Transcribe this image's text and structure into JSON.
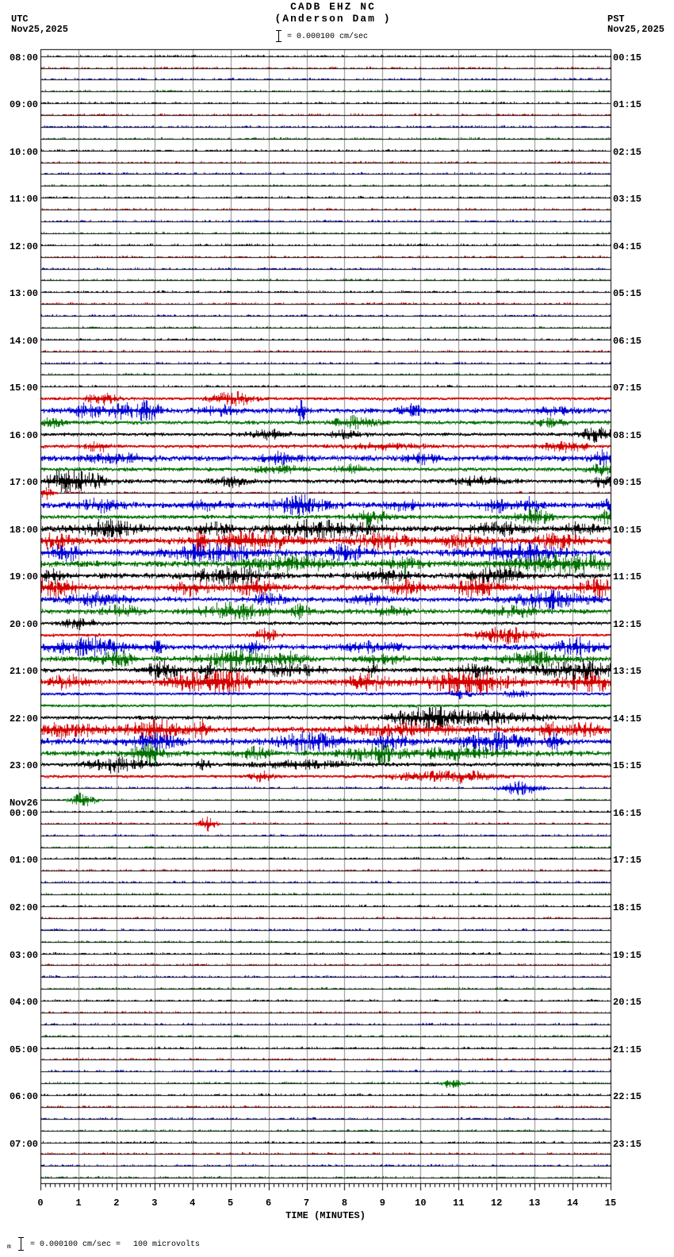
{
  "header": {
    "tz_left": "UTC",
    "date_left": "Nov25,2025",
    "tz_right": "PST",
    "date_right": "Nov25,2025",
    "station": "CADB EHZ NC",
    "location": "(Anderson Dam )",
    "scale_value": "= 0.000100 cm/sec"
  },
  "footer": {
    "axis_label": "TIME (MINUTES)",
    "note_prefix": "m",
    "note_scale": "= 0.000100 cm/sec =",
    "note_value": "100 microvolts",
    "tick_labels": [
      "0",
      "1",
      "2",
      "3",
      "4",
      "5",
      "6",
      "7",
      "8",
      "9",
      "10",
      "11",
      "12",
      "13",
      "14",
      "15"
    ]
  },
  "chart_data": {
    "type": "line",
    "subtype": "helicorder-seismogram",
    "xlabel": "TIME (MINUTES)",
    "x_range_minutes": [
      0,
      15
    ],
    "minutes_per_row": 15,
    "rows_total": 96,
    "grid": true,
    "colors": {
      "trace_cycle": [
        "#000000",
        "#d40000",
        "#0000d4",
        "#007000"
      ],
      "grid": "#8a8a8a",
      "baseline": "#000000",
      "background": "#ffffff"
    },
    "date_break": {
      "row": 64,
      "label": "Nov26"
    },
    "rows": [
      {
        "u": "08:00",
        "p": "00:15",
        "a": 0.55
      },
      {
        "a": 0.7
      },
      {
        "a": 0.8
      },
      {
        "a": 0.7
      },
      {
        "u": "09:00",
        "p": "01:15",
        "a": 0.55
      },
      {
        "a": 0.7
      },
      {
        "a": 0.8
      },
      {
        "a": 0.7
      },
      {
        "u": "10:00",
        "p": "02:15",
        "a": 0.55
      },
      {
        "a": 0.7
      },
      {
        "a": 0.8
      },
      {
        "a": 0.7
      },
      {
        "u": "11:00",
        "p": "03:15",
        "a": 0.55
      },
      {
        "a": 0.7
      },
      {
        "a": 0.85
      },
      {
        "a": 0.75
      },
      {
        "u": "12:00",
        "p": "04:15",
        "a": 0.55
      },
      {
        "a": 0.7
      },
      {
        "a": 0.8
      },
      {
        "a": 0.7
      },
      {
        "u": "13:00",
        "p": "05:15",
        "a": 0.55
      },
      {
        "a": 0.7
      },
      {
        "a": 0.8
      },
      {
        "a": 0.7
      },
      {
        "u": "14:00",
        "p": "06:15",
        "a": 0.6
      },
      {
        "a": 0.7
      },
      {
        "a": 0.8
      },
      {
        "a": 0.75
      },
      {
        "u": "15:00",
        "p": "07:15",
        "a": 0.8
      },
      {
        "a": 0.9,
        "b": [
          [
            1.6,
            4,
            0.3
          ],
          [
            5.0,
            5,
            0.4
          ]
        ]
      },
      {
        "a": 1.7,
        "b": [
          [
            1.2,
            5,
            0.25
          ],
          [
            2.2,
            6,
            0.3
          ],
          [
            2.8,
            7,
            0.2
          ],
          [
            4.7,
            3,
            0.3
          ],
          [
            6.8,
            7,
            0.12
          ],
          [
            9.7,
            4,
            0.2
          ],
          [
            13.5,
            3,
            0.3
          ]
        ]
      },
      {
        "a": 1.2,
        "b": [
          [
            0.3,
            3,
            0.2
          ],
          [
            8.2,
            4,
            0.4
          ],
          [
            13.4,
            3,
            0.3
          ]
        ]
      },
      {
        "u": "16:00",
        "p": "08:15",
        "a": 1.0,
        "b": [
          [
            6,
            3,
            0.4
          ],
          [
            8,
            3,
            0.3
          ],
          [
            14.6,
            5,
            0.3
          ]
        ]
      },
      {
        "a": 1.0,
        "b": [
          [
            1.5,
            4,
            0.2
          ],
          [
            9,
            2,
            0.8
          ],
          [
            13.8,
            4,
            0.4
          ]
        ]
      },
      {
        "a": 1.8,
        "b": [
          [
            2,
            3,
            0.5
          ],
          [
            6.3,
            4,
            0.3
          ],
          [
            10,
            3,
            0.3
          ],
          [
            14.8,
            5,
            0.2
          ]
        ]
      },
      {
        "a": 1.2,
        "b": [
          [
            6.2,
            3,
            0.4
          ],
          [
            8.2,
            3,
            0.3
          ],
          [
            14.7,
            4,
            0.2
          ]
        ]
      },
      {
        "u": "17:00",
        "p": "09:15",
        "a": 1.4,
        "b": [
          [
            0.55,
            9,
            0.35
          ],
          [
            1.3,
            5,
            0.3
          ],
          [
            5,
            3,
            0.3
          ],
          [
            11.5,
            3,
            0.4
          ],
          [
            14.8,
            4,
            0.2
          ]
        ]
      },
      {
        "a": 0.8,
        "b": [
          [
            0.15,
            5,
            0.1
          ]
        ]
      },
      {
        "a": 2.0,
        "b": [
          [
            1.5,
            4,
            0.4
          ],
          [
            4.2,
            3,
            0.3
          ],
          [
            6.8,
            6,
            0.5
          ],
          [
            9.5,
            3,
            0.3
          ],
          [
            12,
            4,
            0.3
          ],
          [
            12.9,
            5,
            0.15
          ],
          [
            14.9,
            4,
            0.2
          ]
        ]
      },
      {
        "a": 1.4,
        "b": [
          [
            8.7,
            5,
            0.3
          ],
          [
            12.9,
            6,
            0.3
          ],
          [
            14.9,
            5,
            0.2
          ]
        ]
      },
      {
        "u": "18:00",
        "p": "10:15",
        "a": 2.0,
        "b": [
          [
            1.8,
            6,
            0.5
          ],
          [
            4.6,
            4,
            0.3
          ],
          [
            7.5,
            6,
            0.8
          ],
          [
            12,
            5,
            0.4
          ],
          [
            14.2,
            4,
            0.3
          ]
        ]
      },
      {
        "a": 2.2,
        "b": [
          [
            0.3,
            5,
            0.3
          ],
          [
            4.2,
            11,
            0.08
          ],
          [
            5.5,
            7,
            0.7
          ],
          [
            9,
            5,
            0.5
          ],
          [
            11,
            4,
            0.4
          ],
          [
            13.6,
            5,
            0.4
          ]
        ]
      },
      {
        "a": 2.2,
        "b": [
          [
            0.6,
            5,
            0.3
          ],
          [
            4.5,
            6,
            0.7
          ],
          [
            8,
            5,
            0.4
          ],
          [
            12.5,
            7,
            0.7
          ]
        ]
      },
      {
        "a": 2.2,
        "b": [
          [
            6.5,
            6,
            0.7
          ],
          [
            9.5,
            5,
            0.3
          ],
          [
            13.8,
            6,
            0.9
          ]
        ]
      },
      {
        "u": "19:00",
        "p": "11:15",
        "a": 1.8,
        "b": [
          [
            0.3,
            4,
            0.2
          ],
          [
            4.9,
            6,
            0.6
          ],
          [
            9,
            5,
            0.4
          ],
          [
            12,
            5,
            0.5
          ]
        ]
      },
      {
        "a": 2.0,
        "b": [
          [
            0.3,
            7,
            0.4
          ],
          [
            4,
            5,
            0.3
          ],
          [
            5.6,
            6,
            0.3
          ],
          [
            9.6,
            5,
            0.3
          ],
          [
            11.5,
            7,
            0.4
          ],
          [
            14.6,
            6,
            0.3
          ]
        ]
      },
      {
        "a": 1.6,
        "b": [
          [
            1.4,
            5,
            0.5
          ],
          [
            6,
            4,
            0.3
          ],
          [
            8.6,
            4,
            0.3
          ],
          [
            13.4,
            7,
            0.6
          ]
        ]
      },
      {
        "a": 1.6,
        "b": [
          [
            2.1,
            4,
            0.3
          ],
          [
            5,
            6,
            0.6
          ],
          [
            6.8,
            4,
            0.2
          ],
          [
            9.2,
            3,
            0.3
          ],
          [
            12.4,
            4,
            0.4
          ]
        ]
      },
      {
        "u": "20:00",
        "p": "12:15",
        "a": 1.0,
        "b": [
          [
            1,
            4,
            0.3
          ]
        ]
      },
      {
        "a": 0.9,
        "b": [
          [
            5.9,
            5,
            0.2
          ],
          [
            12.2,
            6,
            0.5
          ]
        ]
      },
      {
        "a": 1.8,
        "b": [
          [
            1.3,
            6,
            0.7
          ],
          [
            3.05,
            5,
            0.08
          ],
          [
            5.6,
            3,
            0.15
          ],
          [
            8.7,
            3,
            0.5
          ],
          [
            14.1,
            6,
            0.4
          ]
        ]
      },
      {
        "a": 1.8,
        "b": [
          [
            2,
            5,
            0.3
          ],
          [
            5.2,
            7,
            0.6
          ],
          [
            6.6,
            4,
            0.2
          ],
          [
            9,
            3,
            0.3
          ],
          [
            13,
            5,
            0.5
          ]
        ]
      },
      {
        "u": "21:00",
        "p": "13:15",
        "a": 1.5,
        "b": [
          [
            3.2,
            6,
            0.3
          ],
          [
            4.35,
            8,
            0.1
          ],
          [
            6.5,
            4,
            0.6
          ],
          [
            8.7,
            7,
            0.1
          ],
          [
            11.4,
            4,
            0.3
          ],
          [
            14.2,
            6,
            0.8
          ]
        ]
      },
      {
        "a": 2.0,
        "b": [
          [
            0.7,
            5,
            0.3
          ],
          [
            4.3,
            7,
            0.6
          ],
          [
            5,
            5,
            0.3
          ],
          [
            8.6,
            7,
            0.3
          ],
          [
            11.2,
            8,
            0.8
          ],
          [
            14.5,
            6,
            0.5
          ]
        ]
      },
      {
        "a": 0.9,
        "b": [
          [
            11,
            3,
            0.2
          ],
          [
            12.5,
            2.5,
            0.2
          ]
        ]
      },
      {
        "a": 0.9
      },
      {
        "u": "22:00",
        "p": "14:15",
        "a": 1.1,
        "b": [
          [
            9.8,
            4,
            0.4
          ],
          [
            10.4,
            6,
            0.15
          ],
          [
            11.3,
            5,
            1.2
          ]
        ]
      },
      {
        "a": 2.0,
        "b": [
          [
            0.7,
            5,
            0.6
          ],
          [
            3,
            6,
            0.5
          ],
          [
            4.2,
            7,
            0.12
          ],
          [
            9.7,
            4,
            1
          ],
          [
            13.3,
            7,
            0.15
          ],
          [
            14.3,
            4,
            0.4
          ]
        ]
      },
      {
        "a": 2.2,
        "b": [
          [
            2.9,
            5,
            0.4
          ],
          [
            7,
            6,
            0.5
          ],
          [
            9.2,
            5,
            0.3
          ],
          [
            11.9,
            6,
            0.5
          ],
          [
            13.5,
            6,
            0.1
          ]
        ]
      },
      {
        "a": 1.8,
        "b": [
          [
            2.8,
            7,
            0.3
          ],
          [
            5.6,
            4,
            0.3
          ],
          [
            8.7,
            6,
            0.5
          ],
          [
            11,
            4,
            0.8
          ]
        ]
      },
      {
        "u": "23:00",
        "p": "15:15",
        "a": 1.2,
        "b": [
          [
            1.9,
            5,
            0.5
          ],
          [
            4.3,
            4,
            0.1
          ],
          [
            7,
            2.5,
            1
          ]
        ]
      },
      {
        "a": 0.9,
        "b": [
          [
            5.8,
            4,
            0.2
          ],
          [
            10.3,
            3,
            0.8
          ],
          [
            11.3,
            3,
            0.4
          ]
        ]
      },
      {
        "a": 0.7,
        "b": [
          [
            12.6,
            5,
            0.3
          ]
        ]
      },
      {
        "a": 0.7,
        "b": [
          [
            1.1,
            5,
            0.2
          ]
        ]
      },
      {
        "u": "00:00",
        "p": "16:15",
        "a": 0.5
      },
      {
        "a": 0.6,
        "b": [
          [
            4.35,
            5,
            0.15
          ]
        ]
      },
      {
        "a": 0.65
      },
      {
        "a": 0.6
      },
      {
        "u": "01:00",
        "p": "17:15",
        "a": 0.5
      },
      {
        "a": 0.6
      },
      {
        "a": 0.65
      },
      {
        "a": 0.6
      },
      {
        "u": "02:00",
        "p": "18:15",
        "a": 0.5
      },
      {
        "a": 0.6
      },
      {
        "a": 0.65
      },
      {
        "a": 0.6
      },
      {
        "u": "03:00",
        "p": "19:15",
        "a": 0.5
      },
      {
        "a": 0.6
      },
      {
        "a": 0.65
      },
      {
        "a": 0.6
      },
      {
        "u": "04:00",
        "p": "20:15",
        "a": 0.5
      },
      {
        "a": 0.6
      },
      {
        "a": 0.65
      },
      {
        "a": 0.6
      },
      {
        "u": "05:00",
        "p": "21:15",
        "a": 0.5
      },
      {
        "a": 0.6
      },
      {
        "a": 0.65
      },
      {
        "a": 0.6,
        "b": [
          [
            10.8,
            4,
            0.15
          ]
        ]
      },
      {
        "u": "06:00",
        "p": "22:15",
        "a": 0.5
      },
      {
        "a": 0.6
      },
      {
        "a": 0.65
      },
      {
        "a": 0.6
      },
      {
        "u": "07:00",
        "p": "23:15",
        "a": 0.5
      },
      {
        "a": 0.6
      },
      {
        "a": 0.65
      },
      {
        "a": 0.8
      }
    ]
  }
}
